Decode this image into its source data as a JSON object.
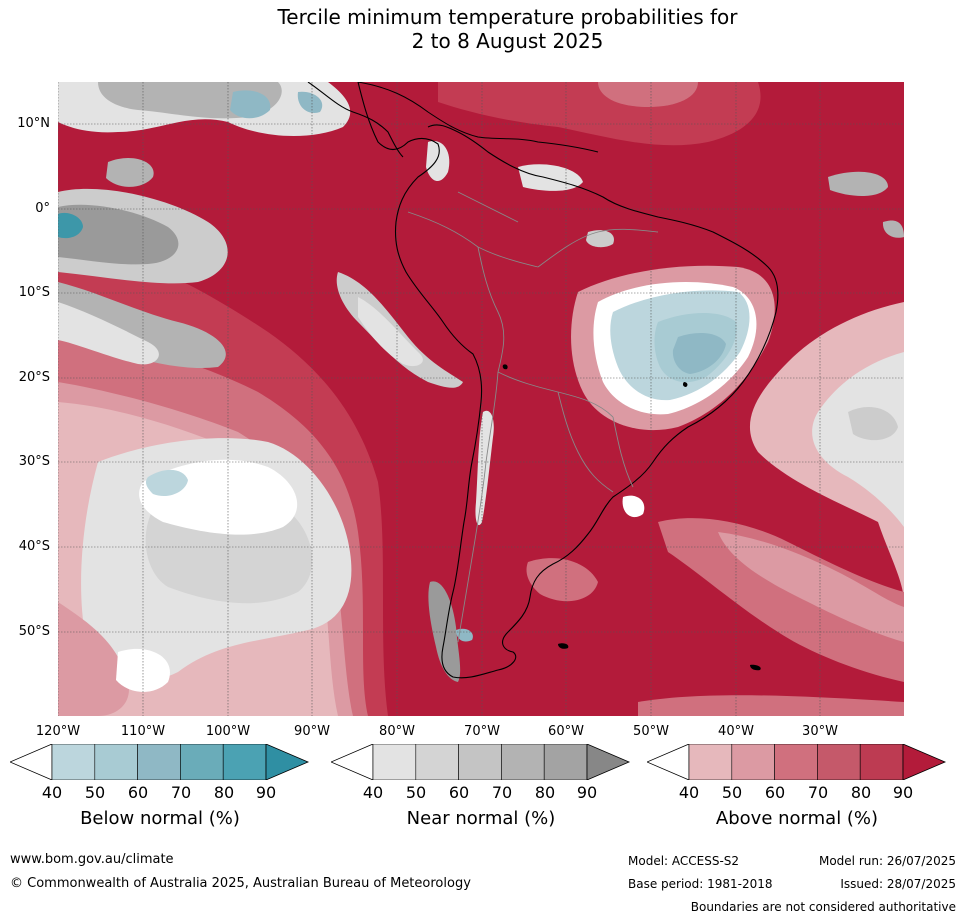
{
  "title": {
    "line1": "Tercile minimum temperature probabilities for",
    "line2": "2 to 8 August 2025"
  },
  "map": {
    "lat_labels": [
      "10°N",
      "0°",
      "10°S",
      "20°S",
      "30°S",
      "40°S",
      "50°S"
    ],
    "lon_labels": [
      "120°W",
      "110°W",
      "100°W",
      "90°W",
      "80°W",
      "70°W",
      "60°W",
      "50°W",
      "40°W",
      "30°W"
    ],
    "colors": {
      "above90": "#b31b3a",
      "above80": "#c33c53",
      "above70": "#d0707e",
      "above60": "#dc9aa3",
      "above50": "#e6b8bc",
      "near50": "#e3e3e3",
      "near60": "#cccccc",
      "near70": "#b3b3b3",
      "near80": "#9a9a9a",
      "below50": "#bcd6dd",
      "below60": "#a8cbd3",
      "below70": "#8fb8c5",
      "below80": "#6aacb9",
      "below90": "#3d97a9"
    }
  },
  "colorbars": [
    {
      "name": "below",
      "title": "Below normal (%)",
      "ticks": [
        "40",
        "50",
        "60",
        "70",
        "80",
        "90"
      ],
      "colors": [
        "#bcd6dd",
        "#a8cbd3",
        "#8fb8c5",
        "#6aacb9",
        "#4ba2b3",
        "#2f8fa3"
      ]
    },
    {
      "name": "near",
      "title": "Near normal (%)",
      "ticks": [
        "40",
        "50",
        "60",
        "70",
        "80",
        "90"
      ],
      "colors": [
        "#e3e3e3",
        "#d4d4d4",
        "#c4c4c4",
        "#b3b3b3",
        "#a3a3a3",
        "#878787"
      ]
    },
    {
      "name": "above",
      "title": "Above normal (%)",
      "ticks": [
        "40",
        "50",
        "60",
        "70",
        "80",
        "90"
      ],
      "colors": [
        "#e6b8bc",
        "#dc9aa3",
        "#d0707e",
        "#c5596a",
        "#bd3b52",
        "#b31b3a"
      ]
    }
  ],
  "footer": {
    "website": "www.bom.gov.au/climate",
    "copyright": "© Commonwealth of Australia 2025, Australian Bureau of Meteorology",
    "model": "Model: ACCESS-S2",
    "model_run": "Model run: 26/07/2025",
    "base_period": "Base period: 1981-2018",
    "issued": "Issued: 28/07/2025",
    "disclaimer": "Boundaries are not considered authoritative"
  }
}
